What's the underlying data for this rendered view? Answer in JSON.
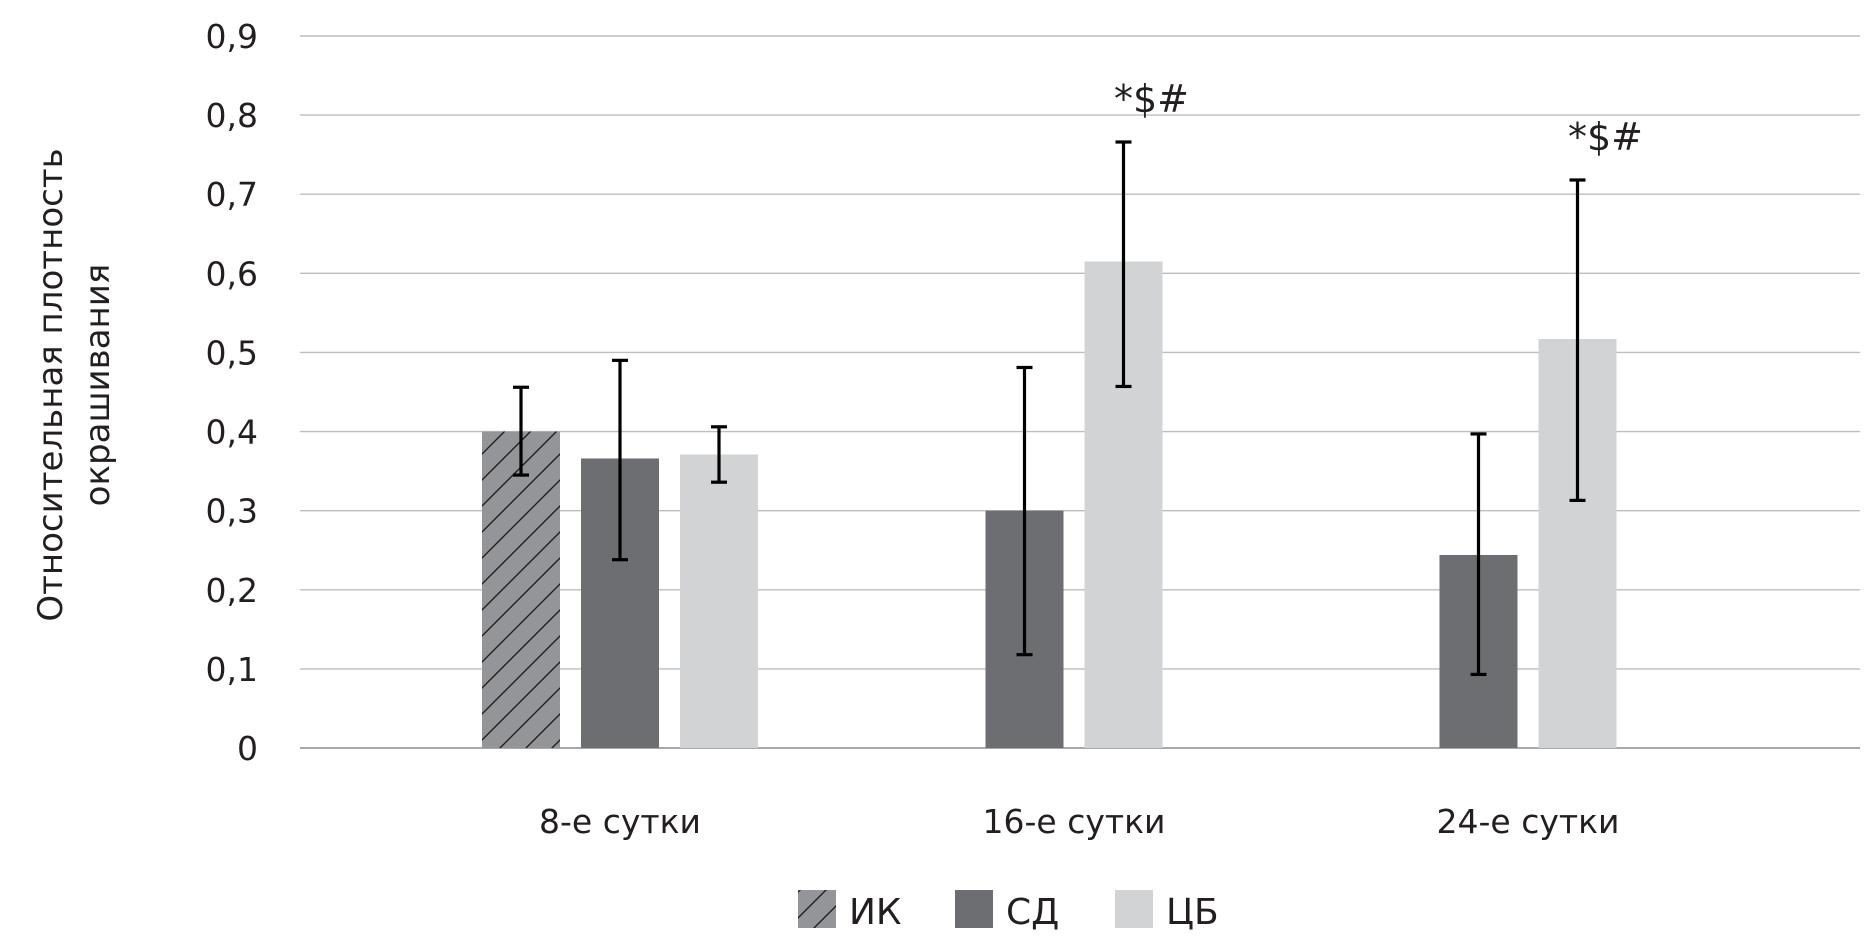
{
  "chart_data": {
    "type": "bar",
    "ylabel_lines": [
      "Относительная плотность",
      "окрашивания"
    ],
    "xlabel": "",
    "ylim": [
      0,
      0.9
    ],
    "y_ticks": [
      "0",
      "0,1",
      "0,2",
      "0,3",
      "0,4",
      "0,5",
      "0,6",
      "0,7",
      "0,8",
      "0,9"
    ],
    "grid": true,
    "legend_position": "bottom-center",
    "categories": [
      "8-е сутки",
      "16-е сутки",
      "24-е сутки"
    ],
    "series": [
      {
        "name": "ИК",
        "color": "#939598",
        "pattern": "diagonal-hatch",
        "values": [
          0.4,
          null,
          null
        ],
        "errors": [
          [
            0.345,
            0.456
          ],
          null,
          null
        ]
      },
      {
        "name": "СД",
        "color": "#6d6e71",
        "pattern": "solid",
        "values": [
          0.366,
          0.3,
          0.244
        ],
        "errors": [
          [
            0.238,
            0.49
          ],
          [
            0.118,
            0.481
          ],
          [
            0.093,
            0.397
          ]
        ]
      },
      {
        "name": "ЦБ",
        "color": "#d1d3d4",
        "pattern": "solid",
        "values": [
          0.371,
          0.615,
          0.517
        ],
        "errors": [
          [
            0.336,
            0.406
          ],
          [
            0.457,
            0.766
          ],
          [
            0.313,
            0.718
          ]
        ]
      }
    ],
    "annotations": [
      {
        "text": "*$#",
        "category": "16-е сутки",
        "series": "ЦБ"
      },
      {
        "text": "*$#",
        "category": "24-е сутки",
        "series": "ЦБ"
      }
    ]
  }
}
